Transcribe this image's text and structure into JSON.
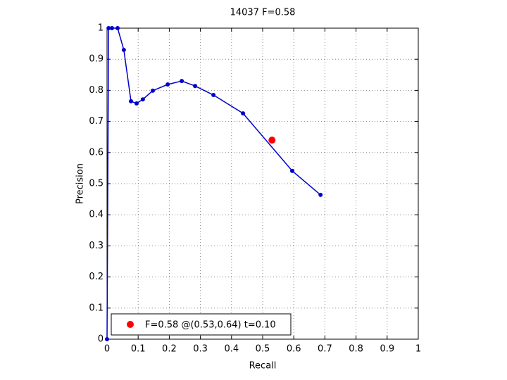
{
  "chart_data": {
    "type": "line",
    "title": "14037 F=0.58",
    "xlabel": "Recall",
    "ylabel": "Precision",
    "series": [
      {
        "color": "#0000cc",
        "x": [
          0,
          0.005,
          0.016,
          0.034,
          0.054,
          0.077,
          0.095,
          0.115,
          0.147,
          0.195,
          0.24,
          0.283,
          0.342,
          0.437,
          0.595,
          0.686
        ],
        "values": [
          0,
          1,
          1,
          1,
          0.93,
          0.765,
          0.758,
          0.771,
          0.799,
          0.819,
          0.83,
          0.814,
          0.785,
          0.726,
          0.541,
          0.464
        ]
      }
    ],
    "highlight": {
      "name": "F=0.58 @(0.53,0.64) t=0.10",
      "color": "#ff0000",
      "x": 0.53,
      "y": 0.64
    },
    "xlim": [
      0,
      1
    ],
    "ylim": [
      0,
      1
    ],
    "xticks": [
      0,
      0.1,
      0.2,
      0.3,
      0.4,
      0.5,
      0.6,
      0.7,
      0.8,
      0.9,
      1
    ],
    "yticks": [
      0,
      0.1,
      0.2,
      0.3,
      0.4,
      0.5,
      0.6,
      0.7,
      0.8,
      0.9,
      1
    ],
    "grid": true,
    "legend": "lower left"
  }
}
